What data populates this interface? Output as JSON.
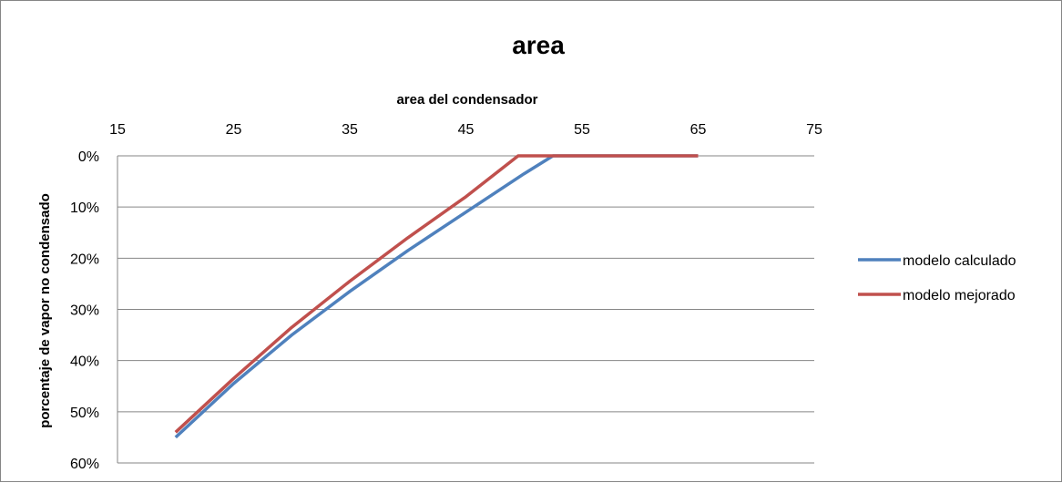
{
  "chart_data": {
    "type": "line",
    "title": "area",
    "xlabel": "area del condensador",
    "ylabel": "porcentaje de vapor no condensado",
    "xlim": [
      15,
      75
    ],
    "ylim": [
      0,
      0.6
    ],
    "x_ticks": [
      "15",
      "25",
      "35",
      "45",
      "55",
      "65",
      "75"
    ],
    "y_ticks": [
      "0%",
      "10%",
      "20%",
      "30%",
      "40%",
      "50%",
      "60%"
    ],
    "x_axis_position": "top",
    "y_axis_reversed": true,
    "grid": "horizontal",
    "legend_position": "right",
    "series": [
      {
        "name": "modelo calculado",
        "color": "#4f81bd",
        "points": [
          [
            20,
            0.55
          ],
          [
            25,
            0.445
          ],
          [
            30,
            0.35
          ],
          [
            35,
            0.265
          ],
          [
            40,
            0.185
          ],
          [
            45,
            0.11
          ],
          [
            50,
            0.035
          ],
          [
            52.5,
            0
          ],
          [
            55,
            0
          ],
          [
            60,
            0
          ],
          [
            65,
            0
          ]
        ]
      },
      {
        "name": "modelo mejorado",
        "color": "#c0504d",
        "points": [
          [
            20,
            0.54
          ],
          [
            25,
            0.435
          ],
          [
            30,
            0.335
          ],
          [
            35,
            0.245
          ],
          [
            40,
            0.16
          ],
          [
            45,
            0.08
          ],
          [
            49.5,
            0
          ],
          [
            55,
            0
          ],
          [
            60,
            0
          ],
          [
            65,
            0
          ]
        ]
      }
    ]
  }
}
